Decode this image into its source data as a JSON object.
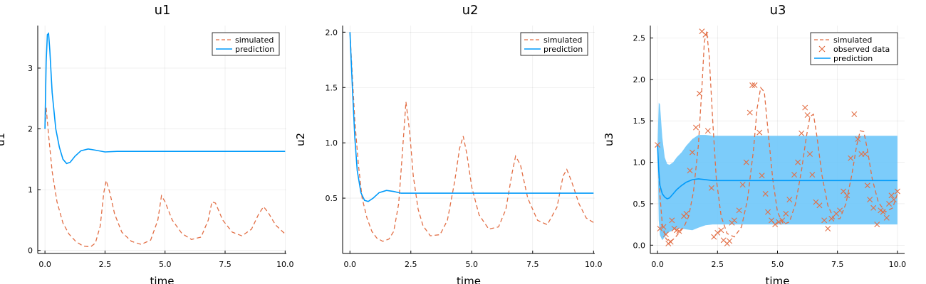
{
  "colors": {
    "simulated": "#E26F46",
    "prediction": "#009AFA",
    "band": "#6EC6FA",
    "observed": "#E26F46"
  },
  "chart_data": [
    {
      "type": "line",
      "title": "u1",
      "xlabel": "time",
      "ylabel": "u1",
      "xlim": [
        -0.3,
        10.05
      ],
      "ylim": [
        -0.05,
        3.7
      ],
      "xticks": [
        0.0,
        2.5,
        5.0,
        7.5,
        10.0
      ],
      "xticklabels": [
        "0.0",
        "2.5",
        "5.0",
        "7.5",
        "10.0"
      ],
      "yticks": [
        0,
        1,
        2,
        3
      ],
      "yticklabels": [
        "0",
        "1",
        "2",
        "3"
      ],
      "grid": true,
      "legend_position": "top-right",
      "series": [
        {
          "name": "simulated",
          "style": "dashed",
          "x": [
            0,
            0.05,
            0.15,
            0.3,
            0.5,
            0.75,
            1.0,
            1.3,
            1.6,
            1.9,
            2.1,
            2.3,
            2.45,
            2.55,
            2.7,
            2.9,
            3.2,
            3.6,
            4.0,
            4.4,
            4.7,
            4.85,
            5.0,
            5.3,
            5.7,
            6.1,
            6.5,
            6.8,
            6.95,
            7.1,
            7.4,
            7.8,
            8.2,
            8.6,
            8.9,
            9.1,
            9.3,
            9.6,
            10.0
          ],
          "y": [
            2.0,
            2.35,
            1.9,
            1.3,
            0.8,
            0.45,
            0.27,
            0.14,
            0.07,
            0.06,
            0.12,
            0.4,
            0.95,
            1.15,
            0.95,
            0.6,
            0.3,
            0.15,
            0.1,
            0.17,
            0.5,
            0.9,
            0.8,
            0.5,
            0.28,
            0.18,
            0.22,
            0.5,
            0.8,
            0.78,
            0.5,
            0.3,
            0.24,
            0.35,
            0.6,
            0.72,
            0.62,
            0.42,
            0.27
          ]
        },
        {
          "name": "prediction",
          "style": "solid",
          "x": [
            0,
            0.05,
            0.1,
            0.15,
            0.2,
            0.3,
            0.45,
            0.6,
            0.75,
            0.9,
            1.05,
            1.25,
            1.5,
            1.8,
            2.1,
            2.5,
            3.0,
            4.0,
            5.0,
            6.0,
            7.0,
            8.0,
            9.0,
            10.0
          ],
          "y": [
            2.0,
            3.1,
            3.55,
            3.57,
            3.3,
            2.6,
            2.0,
            1.7,
            1.5,
            1.43,
            1.45,
            1.55,
            1.64,
            1.67,
            1.65,
            1.62,
            1.63,
            1.63,
            1.63,
            1.63,
            1.63,
            1.63,
            1.63,
            1.63
          ]
        }
      ]
    },
    {
      "type": "line",
      "title": "u2",
      "xlabel": "time",
      "ylabel": "u2",
      "xlim": [
        -0.3,
        10.05
      ],
      "ylim": [
        0.0,
        2.06
      ],
      "xticks": [
        0.0,
        2.5,
        5.0,
        7.5,
        10.0
      ],
      "xticklabels": [
        "0.0",
        "2.5",
        "5.0",
        "7.5",
        "10.0"
      ],
      "yticks": [
        0.5,
        1.0,
        1.5,
        2.0
      ],
      "yticklabels": [
        "0.5",
        "1.0",
        "1.5",
        "2.0"
      ],
      "grid": true,
      "legend_position": "top-right",
      "series": [
        {
          "name": "simulated",
          "style": "dashed",
          "x": [
            0,
            0.1,
            0.2,
            0.35,
            0.5,
            0.7,
            0.9,
            1.1,
            1.35,
            1.6,
            1.8,
            2.0,
            2.15,
            2.3,
            2.45,
            2.6,
            2.8,
            3.0,
            3.3,
            3.7,
            4.0,
            4.3,
            4.5,
            4.65,
            4.8,
            5.0,
            5.3,
            5.7,
            6.1,
            6.4,
            6.65,
            6.8,
            7.0,
            7.3,
            7.7,
            8.1,
            8.5,
            8.75,
            8.9,
            9.1,
            9.4,
            9.7,
            10.0
          ],
          "y": [
            2.0,
            1.6,
            1.2,
            0.8,
            0.5,
            0.32,
            0.2,
            0.14,
            0.11,
            0.13,
            0.2,
            0.45,
            0.9,
            1.37,
            1.1,
            0.7,
            0.4,
            0.25,
            0.16,
            0.17,
            0.3,
            0.65,
            0.95,
            1.06,
            0.9,
            0.6,
            0.35,
            0.22,
            0.24,
            0.4,
            0.72,
            0.88,
            0.8,
            0.5,
            0.3,
            0.26,
            0.42,
            0.7,
            0.76,
            0.65,
            0.45,
            0.32,
            0.28
          ]
        },
        {
          "name": "prediction",
          "style": "solid",
          "x": [
            0,
            0.1,
            0.2,
            0.3,
            0.45,
            0.6,
            0.75,
            0.95,
            1.2,
            1.5,
            1.8,
            2.1,
            2.5,
            3.0,
            4.0,
            5.0,
            6.0,
            7.0,
            8.0,
            9.0,
            10.0
          ],
          "y": [
            2.0,
            1.5,
            1.05,
            0.75,
            0.55,
            0.48,
            0.47,
            0.5,
            0.55,
            0.57,
            0.56,
            0.545,
            0.545,
            0.545,
            0.545,
            0.545,
            0.545,
            0.545,
            0.545,
            0.545,
            0.545
          ]
        }
      ]
    },
    {
      "type": "line",
      "title": "u3",
      "xlabel": "time",
      "ylabel": "u3",
      "xlim": [
        -0.3,
        10.3
      ],
      "ylim": [
        -0.1,
        2.65
      ],
      "xticks": [
        0.0,
        2.5,
        5.0,
        7.5,
        10.0
      ],
      "xticklabels": [
        "0.0",
        "2.5",
        "5.0",
        "7.5",
        "10.0"
      ],
      "yticks": [
        0.0,
        0.5,
        1.0,
        1.5,
        2.0,
        2.5
      ],
      "yticklabels": [
        "0.0",
        "0.5",
        "1.0",
        "1.5",
        "2.0",
        "2.5"
      ],
      "grid": true,
      "legend_position": "top-right",
      "series": [
        {
          "name": "simulated",
          "style": "dashed",
          "x": [
            0,
            0.1,
            0.2,
            0.35,
            0.5,
            0.7,
            0.9,
            1.1,
            1.3,
            1.5,
            1.7,
            1.85,
            1.95,
            2.05,
            2.15,
            2.3,
            2.45,
            2.65,
            2.9,
            3.2,
            3.5,
            3.75,
            4.0,
            4.15,
            4.3,
            4.45,
            4.6,
            4.8,
            5.0,
            5.25,
            5.5,
            5.75,
            6.0,
            6.2,
            6.35,
            6.5,
            6.65,
            6.85,
            7.1,
            7.35,
            7.6,
            7.85,
            8.1,
            8.3,
            8.45,
            8.6,
            8.75,
            8.95,
            9.2,
            9.5,
            9.8,
            10.0
          ],
          "y": [
            1.2,
            0.6,
            0.25,
            0.08,
            0.04,
            0.08,
            0.15,
            0.22,
            0.35,
            0.65,
            1.2,
            1.9,
            2.45,
            2.58,
            2.3,
            1.5,
            0.8,
            0.35,
            0.14,
            0.1,
            0.22,
            0.55,
            1.15,
            1.65,
            1.9,
            1.85,
            1.4,
            0.8,
            0.4,
            0.25,
            0.28,
            0.5,
            0.9,
            1.3,
            1.55,
            1.58,
            1.3,
            0.85,
            0.48,
            0.32,
            0.32,
            0.5,
            0.85,
            1.2,
            1.38,
            1.37,
            1.15,
            0.8,
            0.52,
            0.4,
            0.45,
            0.62
          ]
        },
        {
          "name": "observed data",
          "style": "marker-x",
          "x": [
            0.0,
            0.1,
            0.25,
            0.35,
            0.45,
            0.55,
            0.6,
            0.7,
            0.8,
            0.9,
            1.1,
            1.2,
            1.35,
            1.45,
            1.6,
            1.75,
            1.85,
            2.0,
            2.1,
            2.25,
            2.35,
            2.5,
            2.65,
            2.75,
            2.9,
            3.0,
            3.1,
            3.2,
            3.4,
            3.55,
            3.7,
            3.85,
            3.95,
            4.05,
            4.25,
            4.35,
            4.5,
            4.6,
            4.75,
            4.9,
            5.05,
            5.2,
            5.35,
            5.5,
            5.7,
            5.85,
            6.0,
            6.15,
            6.25,
            6.35,
            6.45,
            6.6,
            6.75,
            6.95,
            7.1,
            7.25,
            7.45,
            7.6,
            7.75,
            7.9,
            8.05,
            8.2,
            8.35,
            8.5,
            8.65,
            8.75,
            8.85,
            9.0,
            9.15,
            9.3,
            9.4,
            9.55,
            9.65,
            9.75,
            9.85,
            10.0
          ],
          "y": [
            1.21,
            0.2,
            0.22,
            0.13,
            0.02,
            0.04,
            0.3,
            0.2,
            0.18,
            0.17,
            0.35,
            0.38,
            0.9,
            1.12,
            1.42,
            1.83,
            2.58,
            2.54,
            1.38,
            0.69,
            0.1,
            0.15,
            0.18,
            0.06,
            0.02,
            0.05,
            0.27,
            0.3,
            0.42,
            0.73,
            1.0,
            1.6,
            1.93,
            1.93,
            1.36,
            0.84,
            0.62,
            0.4,
            0.3,
            0.25,
            0.28,
            0.3,
            0.38,
            0.55,
            0.85,
            1.0,
            1.35,
            1.66,
            1.57,
            1.1,
            0.85,
            0.52,
            0.48,
            0.3,
            0.2,
            0.32,
            0.38,
            0.42,
            0.65,
            0.6,
            1.05,
            1.58,
            1.28,
            1.1,
            1.1,
            0.72,
            0.55,
            0.45,
            0.25,
            0.42,
            0.4,
            0.33,
            0.5,
            0.6,
            0.55,
            0.65
          ]
        },
        {
          "name": "prediction",
          "style": "solid-with-band",
          "x": [
            0,
            0.05,
            0.1,
            0.2,
            0.3,
            0.4,
            0.5,
            0.65,
            0.8,
            1.0,
            1.2,
            1.45,
            1.7,
            2.0,
            2.3,
            2.7,
            3.2,
            4.0,
            5.0,
            6.0,
            7.0,
            8.0,
            9.0,
            10.0
          ],
          "y": [
            1.2,
            0.9,
            0.72,
            0.62,
            0.58,
            0.56,
            0.57,
            0.62,
            0.67,
            0.72,
            0.76,
            0.79,
            0.8,
            0.79,
            0.78,
            0.78,
            0.78,
            0.78,
            0.78,
            0.78,
            0.78,
            0.78,
            0.78,
            0.78
          ],
          "upper": [
            1.2,
            1.72,
            1.7,
            1.3,
            1.06,
            0.98,
            0.97,
            1.0,
            1.06,
            1.12,
            1.2,
            1.28,
            1.33,
            1.33,
            1.32,
            1.32,
            1.32,
            1.32,
            1.32,
            1.32,
            1.32,
            1.32,
            1.32,
            1.32
          ],
          "lower": [
            1.2,
            0.3,
            0.12,
            0.06,
            0.1,
            0.14,
            0.16,
            0.18,
            0.2,
            0.2,
            0.19,
            0.18,
            0.21,
            0.24,
            0.25,
            0.25,
            0.25,
            0.25,
            0.25,
            0.25,
            0.25,
            0.25,
            0.25,
            0.25
          ]
        }
      ]
    }
  ]
}
